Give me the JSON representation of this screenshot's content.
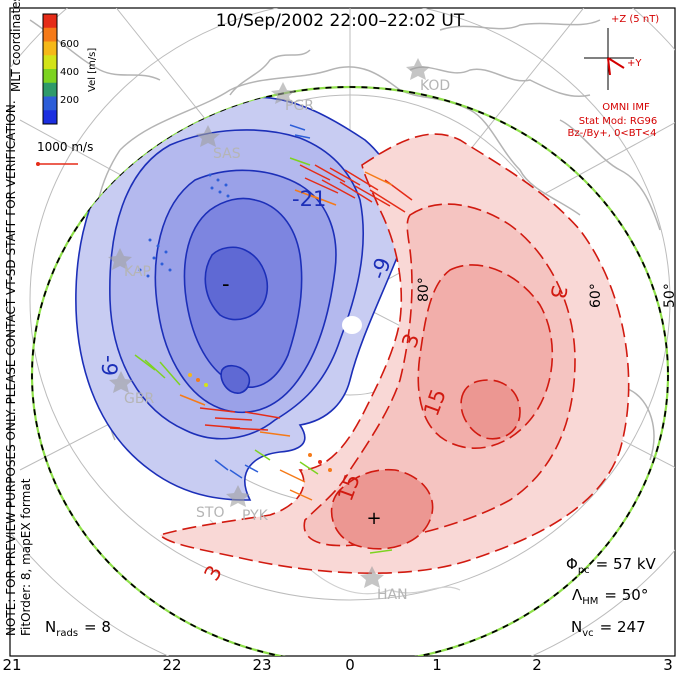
{
  "title": "10/Sep/2002 22:00–22:02 UT",
  "left_notes": {
    "preview": "NOTE: FOR PREVIEW PURPOSES ONLY. PLEASE CONTACT VT-SD STAFF FOR VERIFICATION.",
    "fit_order": "FitOrder: 8, mapEX format",
    "mlt": "MLT coordinates"
  },
  "colorbar": {
    "label": "Vel [m/s]",
    "ticks": [
      "600",
      "400",
      "200"
    ],
    "colors": [
      "#1c2fe0",
      "#2d5ed8",
      "#2e9a6a",
      "#7dd321",
      "#d3e318",
      "#f5b818",
      "#f57a18",
      "#e52c18"
    ]
  },
  "velocity_scale": "1000 m/s",
  "imf": {
    "z_label": "+Z (5 nT)",
    "y_label": "+Y",
    "source": "OMNI IMF",
    "model": "Stat Mod: RG96",
    "condition": "Bz-/By+, 0<BT<4"
  },
  "contour_labels": {
    "neg": [
      "-21",
      "-9",
      "-9",
      "-"
    ],
    "pos": [
      "3",
      "3",
      "3",
      "15",
      "15",
      "+"
    ]
  },
  "latitude_labels": [
    "80°",
    "60°",
    "50°"
  ],
  "stations": [
    "PGR",
    "KOD",
    "SAS",
    "KAP",
    "GBR",
    "STO",
    "PYK",
    "HAN"
  ],
  "stats": {
    "phi_pc": {
      "symbol": "Φ",
      "sub": "pc",
      "value": "= 57 kV"
    },
    "lambda_hm": {
      "symbol": "Λ",
      "sub": "HM",
      "value": "= 50°"
    },
    "n_vc": {
      "symbol": "N",
      "sub": "vc",
      "value": "= 247"
    },
    "n_rads": {
      "symbol": "N",
      "sub": "rads",
      "value": "= 8"
    }
  },
  "mlt_axis": [
    "21",
    "22",
    "23",
    "0",
    "1",
    "2",
    "3"
  ],
  "colors": {
    "neg_line": "#1c2fb8",
    "pos_line": "#d11a10",
    "imf_red": "#d40000",
    "boundary_green": "#8fe04a"
  }
}
